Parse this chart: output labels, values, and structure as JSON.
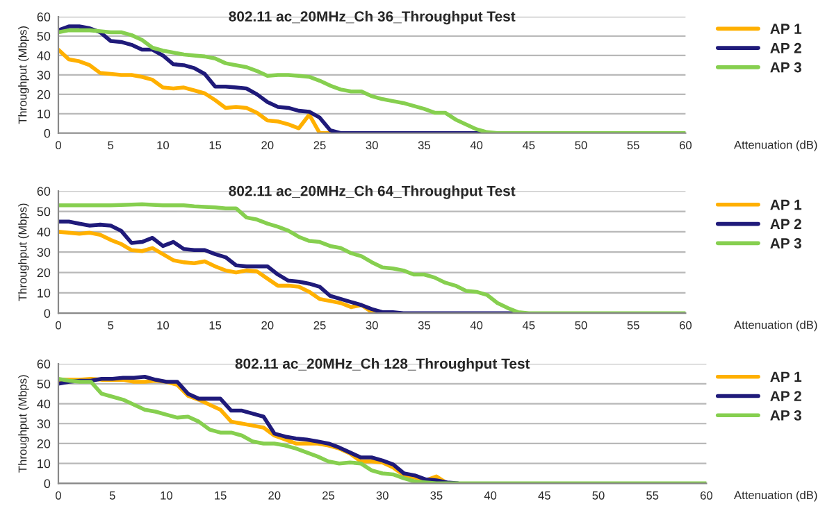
{
  "chart_data": [
    {
      "type": "line",
      "title": "802.11 ac_20MHz_Ch 36_Throughput Test",
      "xlabel": "Attenuation (dB)",
      "ylabel": "Throughput (Mbps)",
      "xlim": [
        0,
        60
      ],
      "xticks": [
        0,
        5,
        10,
        15,
        20,
        25,
        30,
        35,
        40,
        45,
        50,
        55,
        60
      ],
      "ylim": [
        0,
        60
      ],
      "yticks": [
        0,
        10,
        20,
        30,
        40,
        50,
        60
      ],
      "grid": "y",
      "legend": "right",
      "marker": "none",
      "line_style": "solid",
      "series": [
        {
          "name": "AP 1",
          "color": "#ffb000",
          "x": [
            0,
            1,
            2,
            3,
            4,
            5,
            6,
            7,
            8,
            9,
            10,
            11,
            12,
            13,
            14,
            15,
            16,
            17,
            18,
            19,
            20,
            21,
            22,
            23,
            24,
            25,
            26
          ],
          "values": [
            43,
            38,
            37,
            35,
            31,
            30.5,
            30,
            30,
            29,
            27.5,
            23.5,
            23,
            23.5,
            22,
            20.5,
            17,
            13,
            13.5,
            13,
            10.5,
            6.5,
            6,
            4.5,
            2.5,
            9.5,
            0,
            0
          ]
        },
        {
          "name": "AP 2",
          "color": "#1f1a7a",
          "x": [
            0,
            1,
            2,
            3,
            4,
            5,
            6,
            7,
            8,
            9,
            10,
            11,
            12,
            13,
            14,
            15,
            16,
            17,
            18,
            19,
            20,
            21,
            22,
            23,
            24,
            25,
            26,
            27,
            41
          ],
          "values": [
            53,
            55,
            55,
            54,
            52,
            47.5,
            47,
            45.5,
            43,
            43,
            40,
            35.5,
            35,
            33.5,
            30.5,
            24,
            24,
            23.5,
            23,
            20,
            16,
            13.5,
            13,
            11.5,
            11,
            8,
            1.5,
            0,
            0
          ]
        },
        {
          "name": "AP 3",
          "color": "#86cf4f",
          "x": [
            0,
            1,
            2,
            3,
            4,
            5,
            6,
            7,
            8,
            9,
            10,
            11,
            12,
            13,
            14,
            15,
            16,
            17,
            18,
            19,
            20,
            21,
            22,
            23,
            24,
            25,
            26,
            27,
            28,
            29,
            30,
            31,
            32,
            33,
            34,
            35,
            36,
            37,
            38,
            39,
            40,
            41,
            42,
            60
          ],
          "values": [
            52,
            53,
            53,
            53,
            52.5,
            52,
            52,
            50.5,
            48,
            44,
            42.5,
            41.5,
            40.5,
            40,
            39.5,
            38.5,
            36,
            35,
            34,
            32,
            29.5,
            30,
            30,
            29.5,
            29,
            27,
            24.5,
            22.5,
            21.5,
            21.5,
            19,
            17.5,
            16.5,
            15.5,
            14,
            12.5,
            10.5,
            10.5,
            7,
            4.5,
            2,
            0.5,
            0,
            0
          ]
        }
      ]
    },
    {
      "type": "line",
      "title": "802.11 ac_20MHz_Ch 64_Throughput Test",
      "xlabel": "Attenuation (dB)",
      "ylabel": "Throughput (Mbps)",
      "xlim": [
        0,
        60
      ],
      "xticks": [
        0,
        5,
        10,
        15,
        20,
        25,
        30,
        35,
        40,
        45,
        50,
        55,
        60
      ],
      "ylim": [
        0,
        60
      ],
      "yticks": [
        0,
        10,
        20,
        30,
        40,
        50,
        60
      ],
      "grid": "y",
      "legend": "right",
      "marker": "none",
      "line_style": "solid",
      "series": [
        {
          "name": "AP 1",
          "color": "#ffb000",
          "x": [
            0,
            1,
            2,
            3,
            4,
            5,
            6,
            7,
            8,
            9,
            10,
            11,
            12,
            13,
            14,
            15,
            16,
            17,
            18,
            19,
            20,
            21,
            22,
            23,
            24,
            25,
            26,
            27,
            28,
            29,
            30,
            31
          ],
          "values": [
            40,
            39.5,
            39,
            39.5,
            38.5,
            36,
            34,
            31,
            30.5,
            32,
            29,
            26,
            25,
            24.5,
            25.5,
            23,
            21,
            20,
            21,
            20.5,
            17,
            13.5,
            13.5,
            13,
            10.5,
            7,
            6,
            5,
            3,
            4,
            0.5,
            0
          ]
        },
        {
          "name": "AP 2",
          "color": "#1f1a7a",
          "x": [
            0,
            1,
            2,
            3,
            4,
            5,
            6,
            7,
            8,
            9,
            10,
            11,
            12,
            13,
            14,
            15,
            16,
            17,
            18,
            19,
            20,
            21,
            22,
            23,
            24,
            25,
            26,
            27,
            28,
            29,
            30,
            31,
            32,
            33,
            44
          ],
          "values": [
            45,
            45,
            44,
            43,
            43.5,
            43,
            40.5,
            34.5,
            35,
            37,
            33,
            35,
            31.5,
            31,
            31,
            29,
            27.5,
            23.5,
            23,
            23,
            23,
            19,
            16,
            15.5,
            14.5,
            13,
            8.5,
            7,
            5.5,
            4,
            2,
            0.5,
            0.5,
            0,
            0
          ]
        },
        {
          "name": "AP 3",
          "color": "#86cf4f",
          "x": [
            0,
            5,
            8,
            10,
            12,
            13,
            15,
            16,
            17,
            18,
            19,
            20,
            21,
            22,
            23,
            24,
            25,
            26,
            27,
            28,
            29,
            30,
            31,
            32,
            33,
            34,
            35,
            36,
            37,
            38,
            39,
            40,
            41,
            42,
            43,
            44,
            45,
            60
          ],
          "values": [
            53,
            53,
            53.5,
            53,
            53,
            52.5,
            52,
            51.5,
            51.5,
            47,
            46,
            44,
            42.5,
            40.5,
            37.5,
            35.5,
            35,
            33,
            32,
            29.5,
            28,
            25,
            22.5,
            22,
            21,
            19,
            19,
            17.5,
            15,
            13.5,
            11,
            10.5,
            9,
            5,
            2.5,
            0.5,
            0,
            0
          ]
        }
      ]
    },
    {
      "type": "line",
      "title": "802.11 ac_20MHz_Ch 128_Throughput Test",
      "xlabel": "Attenuation (dB)",
      "ylabel": "Throughput (Mbps)",
      "xlim": [
        0,
        60
      ],
      "xticks": [
        0,
        5,
        10,
        15,
        20,
        25,
        30,
        35,
        40,
        45,
        50,
        55,
        60
      ],
      "ylim": [
        0,
        60
      ],
      "yticks": [
        0,
        10,
        20,
        30,
        40,
        50,
        60
      ],
      "grid": "y",
      "legend": "right",
      "marker": "none",
      "line_style": "solid",
      "series": [
        {
          "name": "AP 1",
          "color": "#ffb000",
          "x": [
            0,
            1,
            2,
            3,
            4,
            5,
            6,
            7,
            8,
            9,
            10,
            11,
            12,
            13,
            14,
            15,
            16,
            17,
            18,
            19,
            20,
            21,
            22,
            23,
            24,
            25,
            26,
            27,
            28,
            29,
            30,
            31,
            32,
            33,
            34,
            35,
            36
          ],
          "values": [
            52,
            52,
            52,
            52.5,
            52,
            52,
            52,
            51,
            51,
            51.5,
            51,
            49.5,
            44,
            42,
            39.5,
            37,
            31,
            30,
            29,
            28,
            24,
            22,
            20,
            20,
            20,
            19,
            17.5,
            15,
            11,
            11,
            10.5,
            8,
            4,
            3,
            1.5,
            3.5,
            0
          ]
        },
        {
          "name": "AP 2",
          "color": "#1f1a7a",
          "x": [
            0,
            1,
            2,
            3,
            4,
            5,
            6,
            7,
            8,
            9,
            10,
            11,
            12,
            13,
            14,
            15,
            16,
            17,
            18,
            19,
            20,
            21,
            22,
            23,
            24,
            25,
            26,
            27,
            28,
            29,
            30,
            31,
            32,
            33,
            34,
            35,
            36,
            37
          ],
          "values": [
            50,
            51,
            51.5,
            51.5,
            52.5,
            52.5,
            53,
            53,
            53.5,
            52,
            51,
            51,
            45,
            42.5,
            42.5,
            42.5,
            36.5,
            36.5,
            35,
            33.5,
            25,
            23.5,
            22.5,
            22,
            21,
            20,
            18,
            15.5,
            13,
            13,
            11.5,
            9.5,
            5,
            4,
            2,
            1.5,
            0.5,
            0
          ]
        },
        {
          "name": "AP 3",
          "color": "#86cf4f",
          "x": [
            0,
            1,
            2,
            3,
            4,
            5,
            6,
            7,
            8,
            9,
            10,
            11,
            12,
            13,
            14,
            15,
            16,
            17,
            18,
            19,
            20,
            21,
            22,
            23,
            24,
            25,
            26,
            27,
            28,
            29,
            30,
            31,
            32,
            33,
            34,
            35,
            60
          ],
          "values": [
            52.5,
            51.5,
            51,
            51,
            45,
            43.5,
            42,
            39.5,
            37,
            36,
            34.5,
            33,
            33.5,
            31,
            27,
            25.5,
            25.5,
            24,
            21,
            20,
            20,
            19,
            17.5,
            15.5,
            13.5,
            11,
            10,
            10.5,
            10,
            6.5,
            5,
            4.5,
            2.5,
            1,
            0.5,
            0,
            0
          ]
        }
      ]
    }
  ]
}
